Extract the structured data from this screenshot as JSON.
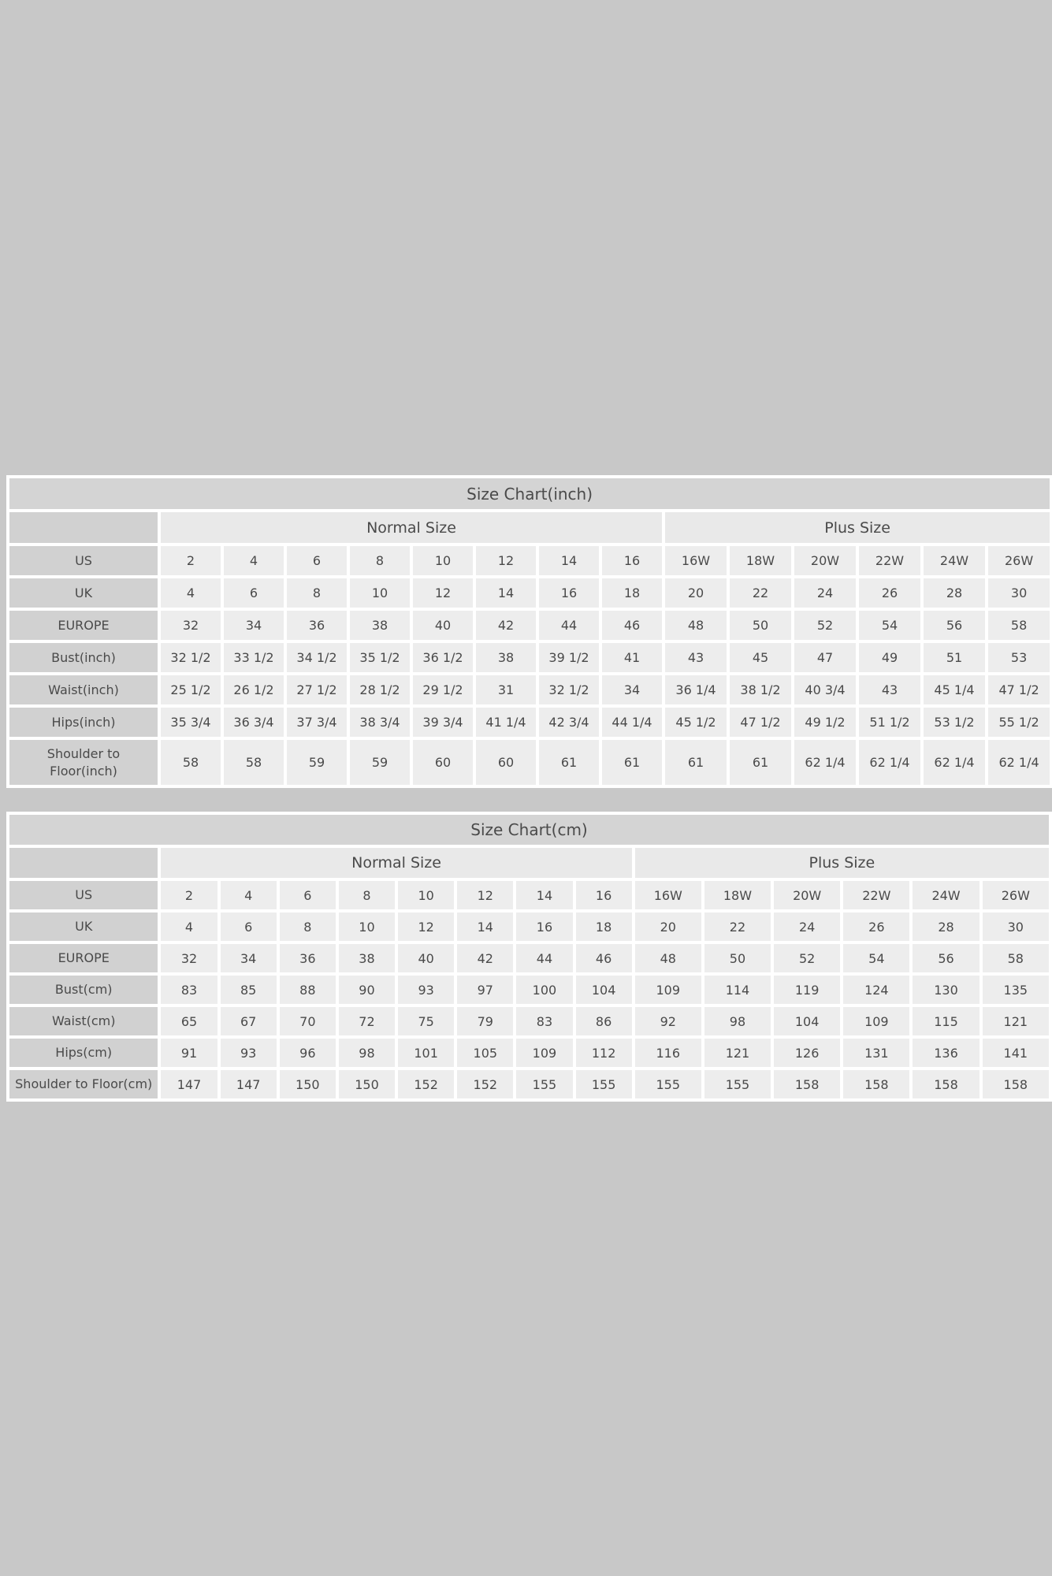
{
  "page": {
    "colors": {
      "page_background": "#c8c8c8",
      "table_background": "#ffffff",
      "title_cell": "#d4d4d4",
      "label_cell": "#d1d1d1",
      "group_header_cell": "#e9e9e9",
      "data_cell": "#ededed",
      "text": "#4a4a4a"
    }
  },
  "tables": [
    {
      "title": "Size Chart(inch)",
      "normal_header": "Normal Size",
      "plus_header": "Plus Size",
      "normal_span": 8,
      "plus_span": 6,
      "rows": [
        {
          "label": "US",
          "values": [
            "2",
            "4",
            "6",
            "8",
            "10",
            "12",
            "14",
            "16",
            "16W",
            "18W",
            "20W",
            "22W",
            "24W",
            "26W"
          ]
        },
        {
          "label": "UK",
          "values": [
            "4",
            "6",
            "8",
            "10",
            "12",
            "14",
            "16",
            "18",
            "20",
            "22",
            "24",
            "26",
            "28",
            "30"
          ]
        },
        {
          "label": "EUROPE",
          "values": [
            "32",
            "34",
            "36",
            "38",
            "40",
            "42",
            "44",
            "46",
            "48",
            "50",
            "52",
            "54",
            "56",
            "58"
          ]
        },
        {
          "label": "Bust(inch)",
          "values": [
            "32 1/2",
            "33 1/2",
            "34 1/2",
            "35 1/2",
            "36 1/2",
            "38",
            "39 1/2",
            "41",
            "43",
            "45",
            "47",
            "49",
            "51",
            "53"
          ]
        },
        {
          "label": "Waist(inch)",
          "values": [
            "25 1/2",
            "26 1/2",
            "27 1/2",
            "28 1/2",
            "29 1/2",
            "31",
            "32 1/2",
            "34",
            "36 1/4",
            "38 1/2",
            "40 3/4",
            "43",
            "45 1/4",
            "47 1/2"
          ]
        },
        {
          "label": "Hips(inch)",
          "values": [
            "35 3/4",
            "36 3/4",
            "37 3/4",
            "38 3/4",
            "39 3/4",
            "41 1/4",
            "42 3/4",
            "44 1/4",
            "45 1/2",
            "47 1/2",
            "49 1/2",
            "51 1/2",
            "53 1/2",
            "55 1/2"
          ]
        },
        {
          "label": "Shoulder to\nFloor(inch)",
          "values": [
            "58",
            "58",
            "59",
            "59",
            "60",
            "60",
            "61",
            "61",
            "61",
            "61",
            "62 1/4",
            "62 1/4",
            "62 1/4",
            "62 1/4"
          ]
        }
      ]
    },
    {
      "title": "Size Chart(cm)",
      "normal_header": "Normal Size",
      "plus_header": "Plus Size",
      "normal_span": 8,
      "plus_span": 6,
      "rows": [
        {
          "label": "US",
          "values": [
            "2",
            "4",
            "6",
            "8",
            "10",
            "12",
            "14",
            "16",
            "16W",
            "18W",
            "20W",
            "22W",
            "24W",
            "26W"
          ]
        },
        {
          "label": "UK",
          "values": [
            "4",
            "6",
            "8",
            "10",
            "12",
            "14",
            "16",
            "18",
            "20",
            "22",
            "24",
            "26",
            "28",
            "30"
          ]
        },
        {
          "label": "EUROPE",
          "values": [
            "32",
            "34",
            "36",
            "38",
            "40",
            "42",
            "44",
            "46",
            "48",
            "50",
            "52",
            "54",
            "56",
            "58"
          ]
        },
        {
          "label": "Bust(cm)",
          "values": [
            "83",
            "85",
            "88",
            "90",
            "93",
            "97",
            "100",
            "104",
            "109",
            "114",
            "119",
            "124",
            "130",
            "135"
          ]
        },
        {
          "label": "Waist(cm)",
          "values": [
            "65",
            "67",
            "70",
            "72",
            "75",
            "79",
            "83",
            "86",
            "92",
            "98",
            "104",
            "109",
            "115",
            "121"
          ]
        },
        {
          "label": "Hips(cm)",
          "values": [
            "91",
            "93",
            "96",
            "98",
            "101",
            "105",
            "109",
            "112",
            "116",
            "121",
            "126",
            "131",
            "136",
            "141"
          ]
        },
        {
          "label": "Shoulder to Floor(cm)",
          "values": [
            "147",
            "147",
            "150",
            "150",
            "152",
            "152",
            "155",
            "155",
            "155",
            "155",
            "158",
            "158",
            "158",
            "158"
          ]
        }
      ]
    }
  ]
}
